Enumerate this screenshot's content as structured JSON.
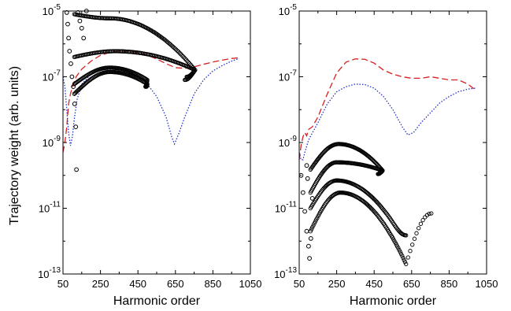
{
  "figure": {
    "ylabel": "Trajectory weight (arb. units)"
  },
  "chart_data": [
    {
      "type": "scatter",
      "panel": "left",
      "xlabel": "Harmonic order",
      "ylabel": "Trajectory weight (arb. units)",
      "xlim": [
        50,
        1050
      ],
      "ylim": [
        1e-13,
        1e-05
      ],
      "yscale": "log",
      "x_ticks": [
        "50",
        "250",
        "450",
        "650",
        "850",
        "1050"
      ],
      "y_ticks": [
        {
          "base": "10",
          "exp": "-13"
        },
        {
          "base": "10",
          "exp": "-11"
        },
        {
          "base": "10",
          "exp": "-9"
        },
        {
          "base": "10",
          "exp": "-7"
        },
        {
          "base": "10",
          "exp": "-5"
        }
      ],
      "grid": false,
      "lines": [
        {
          "color": "#d62020",
          "style": "dashed",
          "x": [
            50,
            60,
            70,
            80,
            90,
            100,
            120,
            150,
            200,
            250,
            300,
            350,
            400,
            450,
            500,
            550,
            600,
            650,
            700,
            750,
            800,
            850,
            900,
            950,
            990
          ],
          "y": [
            5e-10,
            1e-09,
            3e-09,
            1.5e-08,
            3e-08,
            5e-08,
            1e-07,
            1.7e-07,
            3e-07,
            4.5e-07,
            5.5e-07,
            6e-07,
            6e-07,
            5.5e-07,
            4.5e-07,
            3.5e-07,
            2.5e-07,
            1.9e-07,
            1.8e-07,
            2e-07,
            2.4e-07,
            2.8e-07,
            3.2e-07,
            3.6e-07,
            3.8e-07
          ]
        },
        {
          "color": "#2030d0",
          "style": "dotted",
          "x": [
            50,
            60,
            70,
            80,
            90,
            100,
            110,
            125,
            150,
            200,
            250,
            300,
            350,
            400,
            450,
            500,
            550,
            600,
            630,
            645,
            670,
            700,
            750,
            800,
            850,
            900,
            950,
            990
          ],
          "y": [
            1e-07,
            5e-08,
            1e-08,
            2e-09,
            8e-10,
            1.5e-09,
            5e-09,
            2e-08,
            6e-08,
            1.2e-07,
            1.6e-07,
            1.7e-07,
            1.6e-07,
            1.4e-07,
            1e-07,
            6e-08,
            2.5e-08,
            6e-09,
            1.5e-09,
            9e-10,
            2e-09,
            6e-09,
            3e-08,
            8e-08,
            1.5e-07,
            2.2e-07,
            3e-07,
            3.6e-07
          ]
        }
      ],
      "arcs": [
        {
          "x_start": 110,
          "x_end": 755,
          "y_start": 8e-06,
          "y_peak": 6e-06,
          "x_peak": 300,
          "y_end": 1.6e-07,
          "tail_to": 1e-07,
          "tail_x": 710,
          "count": 110
        },
        {
          "x_start": 110,
          "x_end": 755,
          "y_start": 4e-07,
          "y_peak": 6e-07,
          "x_peak": 330,
          "y_end": 1.6e-07,
          "tail_to": 8e-08,
          "tail_x": 700,
          "count": 110
        },
        {
          "x_start": 110,
          "x_end": 500,
          "y_start": 6e-08,
          "y_peak": 1.9e-07,
          "x_peak": 300,
          "y_end": 8e-08,
          "tail_to": 5e-08,
          "tail_x": 490,
          "count": 80
        },
        {
          "x_start": 110,
          "x_end": 500,
          "y_start": 3e-08,
          "y_peak": 1.4e-07,
          "x_peak": 300,
          "y_end": 6e-08,
          "tail_to": 5e-08,
          "tail_x": 495,
          "count": 80
        }
      ],
      "scatter": [
        {
          "x": 70,
          "y": 9e-06
        },
        {
          "x": 75,
          "y": 4e-06
        },
        {
          "x": 80,
          "y": 1.5e-06
        },
        {
          "x": 85,
          "y": 6e-07
        },
        {
          "x": 92,
          "y": 2.5e-07
        },
        {
          "x": 98,
          "y": 1e-07
        },
        {
          "x": 105,
          "y": 5e-08
        },
        {
          "x": 112,
          "y": 1.5e-08
        },
        {
          "x": 118,
          "y": 3e-09
        },
        {
          "x": 122,
          "y": 1.5e-10
        },
        {
          "x": 130,
          "y": 9e-06
        },
        {
          "x": 140,
          "y": 5e-06
        },
        {
          "x": 150,
          "y": 3e-06
        },
        {
          "x": 160,
          "y": 1.5e-06
        },
        {
          "x": 175,
          "y": 1e-05
        }
      ]
    },
    {
      "type": "scatter",
      "panel": "right",
      "xlabel": "Harmonic order",
      "xlim": [
        50,
        1050
      ],
      "ylim": [
        1e-13,
        1e-05
      ],
      "yscale": "log",
      "x_ticks": [
        "50",
        "250",
        "450",
        "650",
        "850",
        "1050"
      ],
      "y_ticks": [
        {
          "base": "10",
          "exp": "-13"
        },
        {
          "base": "10",
          "exp": "-11"
        },
        {
          "base": "10",
          "exp": "-9"
        },
        {
          "base": "10",
          "exp": "-7"
        },
        {
          "base": "10",
          "exp": "-5"
        }
      ],
      "grid": false,
      "lines": [
        {
          "color": "#d62020",
          "style": "dashed",
          "x": [
            50,
            60,
            70,
            80,
            90,
            100,
            120,
            150,
            200,
            250,
            300,
            350,
            400,
            450,
            500,
            550,
            600,
            650,
            700,
            750,
            800,
            850,
            900,
            950,
            990
          ],
          "y": [
            3e-10,
            8e-10,
            1.5e-09,
            2e-09,
            1.6e-09,
            2.5e-09,
            3e-09,
            6e-09,
            3e-08,
            1.3e-07,
            2.8e-07,
            3.5e-07,
            3.4e-07,
            2.6e-07,
            1.6e-07,
            1.2e-07,
            1e-07,
            9e-08,
            9e-08,
            1e-07,
            9e-08,
            8e-08,
            8e-08,
            6e-08,
            4e-08
          ]
        },
        {
          "color": "#2030d0",
          "style": "dotted",
          "x": [
            50,
            60,
            70,
            80,
            100,
            150,
            200,
            250,
            300,
            350,
            400,
            450,
            500,
            550,
            600,
            630,
            660,
            700,
            750,
            800,
            850,
            900,
            950,
            990
          ],
          "y": [
            5e-10,
            3e-10,
            3e-10,
            5e-10,
            1.2e-09,
            4e-09,
            1.5e-08,
            3.5e-08,
            5e-08,
            6e-08,
            5.8e-08,
            4.5e-08,
            2.5e-08,
            1e-08,
            3e-09,
            1.7e-09,
            2e-09,
            4e-09,
            8e-09,
            1.6e-08,
            2.5e-08,
            3.5e-08,
            4.2e-08,
            4.5e-08
          ]
        }
      ],
      "arcs": [
        {
          "x_start": 110,
          "x_end": 495,
          "y_start": 1.5e-10,
          "y_peak": 9e-10,
          "x_peak": 260,
          "y_end": 1.4e-10,
          "tail_to": 1.1e-10,
          "tail_x": 470,
          "count": 90
        },
        {
          "x_start": 110,
          "x_end": 495,
          "y_start": 3e-11,
          "y_peak": 2.5e-10,
          "x_peak": 250,
          "y_end": 1.4e-10,
          "tail_to": 1.2e-10,
          "tail_x": 480,
          "count": 90
        },
        {
          "x_start": 110,
          "x_end": 560,
          "y_start": 1e-11,
          "y_peak": 7e-11,
          "x_peak": 250,
          "y_end": 3e-12,
          "tail_to": 1.5e-12,
          "tail_x": 620,
          "count": 90
        },
        {
          "x_start": 110,
          "x_end": 620,
          "y_start": 2e-12,
          "y_peak": 3e-11,
          "x_peak": 270,
          "y_end": 2e-13,
          "tail_to": 7e-12,
          "tail_x": 755,
          "count": 100
        }
      ],
      "scatter": [
        {
          "x": 60,
          "y": 1e-10
        },
        {
          "x": 70,
          "y": 3e-11
        },
        {
          "x": 80,
          "y": 8e-12
        },
        {
          "x": 90,
          "y": 2e-12
        },
        {
          "x": 100,
          "y": 7e-13
        },
        {
          "x": 105,
          "y": 3e-13
        },
        {
          "x": 112,
          "y": 1.2e-12
        },
        {
          "x": 120,
          "y": 2e-11
        },
        {
          "x": 90,
          "y": 2e-10
        },
        {
          "x": 95,
          "y": 8e-11
        }
      ]
    }
  ]
}
